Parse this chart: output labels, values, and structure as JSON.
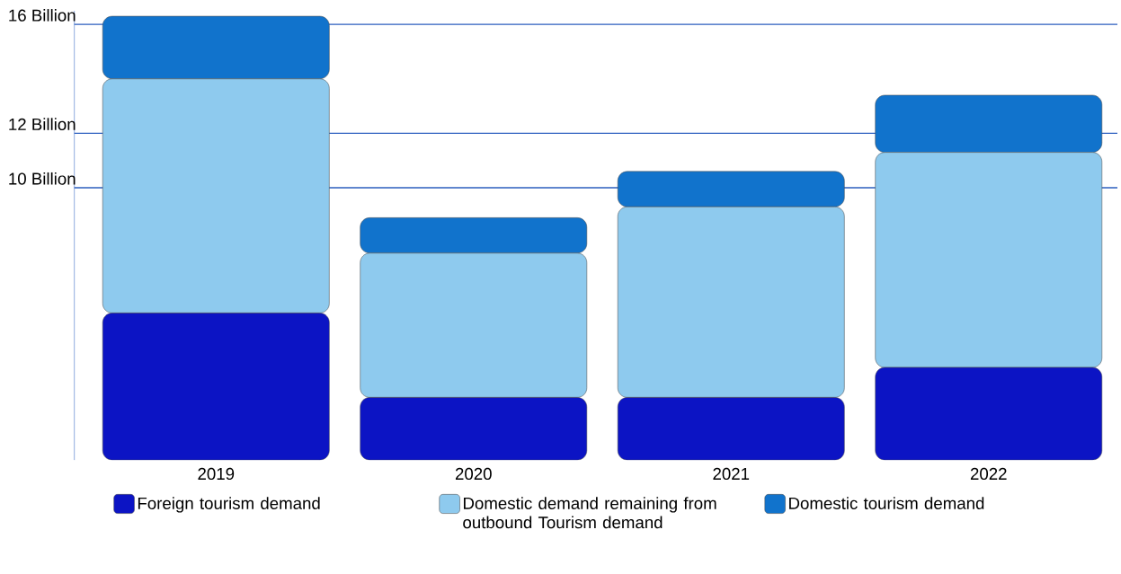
{
  "chart_data": {
    "type": "bar",
    "stacked": true,
    "categories": [
      "2019",
      "2020",
      "2021",
      "2022"
    ],
    "series": [
      {
        "name": "Foreign tourism demand",
        "color": "#0c14c4",
        "values": [
          5.4,
          2.3,
          2.3,
          3.4
        ]
      },
      {
        "name": "Domestic demand remaining from outbound Tourism demand",
        "color": "#8ecaee",
        "values": [
          8.6,
          5.3,
          7.0,
          7.9
        ]
      },
      {
        "name": "Domestic tourism demand",
        "color": "#1173cc",
        "values": [
          2.3,
          1.3,
          1.3,
          2.1
        ]
      }
    ],
    "ylim": [
      0,
      16.5
    ],
    "yticks": [
      {
        "value": 10,
        "label": "10 Billion"
      },
      {
        "value": 12,
        "label": "12 Billion"
      },
      {
        "value": 16,
        "label": "16 Billion"
      }
    ],
    "grid": "y",
    "legend": "bottom"
  }
}
